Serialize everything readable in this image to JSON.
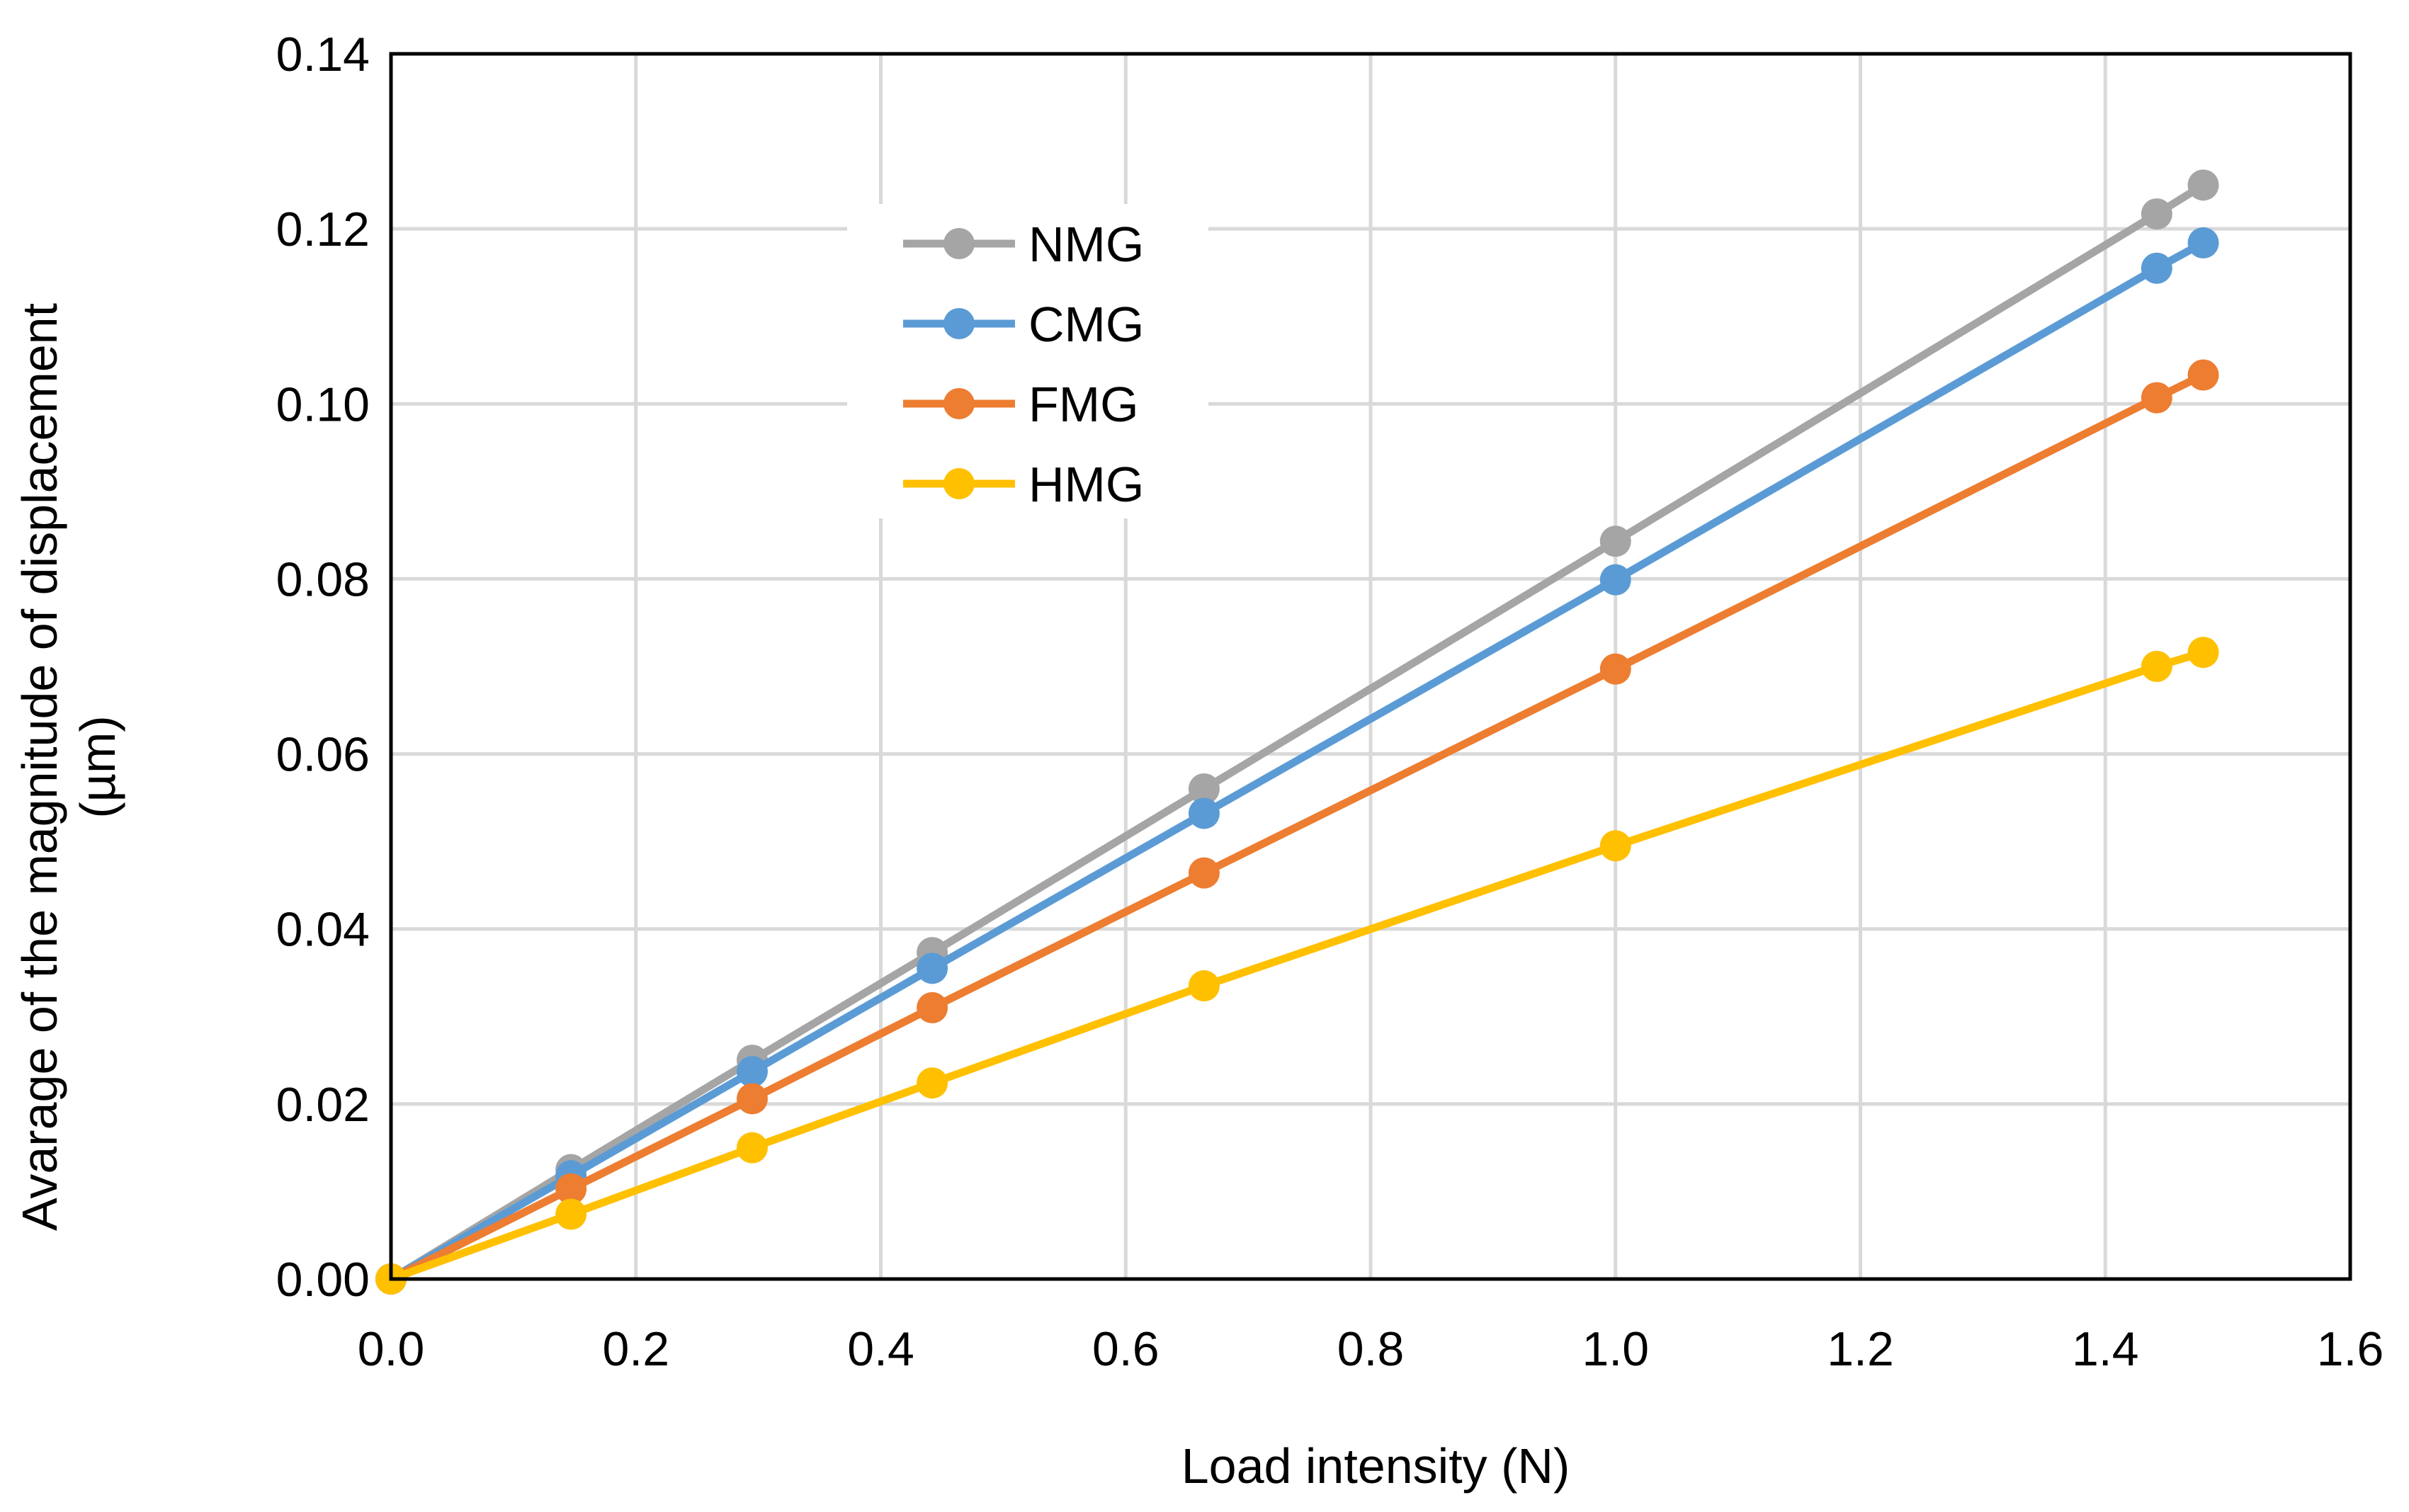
{
  "chart_data": {
    "type": "line",
    "title": "",
    "xlabel": "Load intensity (N)",
    "ylabel_lines": [
      "Avarage of the magnitude of displacement",
      "(µm)"
    ],
    "xlim": [
      0,
      1.6
    ],
    "ylim": [
      0,
      0.14
    ],
    "xticks": [
      "0.0",
      "0.2",
      "0.4",
      "0.6",
      "0.8",
      "1.0",
      "1.2",
      "1.4",
      "1.6"
    ],
    "yticks": [
      "0.00",
      "0.02",
      "0.04",
      "0.06",
      "0.08",
      "0.10",
      "0.12",
      "0.14"
    ],
    "grid": true,
    "legend_position": "upper-left-center",
    "x": [
      0,
      0.147,
      0.295,
      0.442,
      0.664,
      1.0,
      1.442,
      1.48
    ],
    "series": [
      {
        "name": "NMG",
        "color": "#A5A5A5",
        "values": [
          0,
          0.0125,
          0.025,
          0.0373,
          0.056,
          0.0843,
          0.1217,
          0.125
        ]
      },
      {
        "name": "CMG",
        "color": "#5B9BD5",
        "values": [
          0,
          0.0118,
          0.0237,
          0.0355,
          0.0532,
          0.0799,
          0.1155,
          0.1184
        ]
      },
      {
        "name": "FMG",
        "color": "#ED7D31",
        "values": [
          0,
          0.0103,
          0.0206,
          0.031,
          0.0464,
          0.0697,
          0.1007,
          0.1033
        ]
      },
      {
        "name": "HMG",
        "color": "#FFC000",
        "values": [
          0,
          0.0074,
          0.015,
          0.0224,
          0.0335,
          0.0495,
          0.07,
          0.0716
        ]
      }
    ]
  }
}
